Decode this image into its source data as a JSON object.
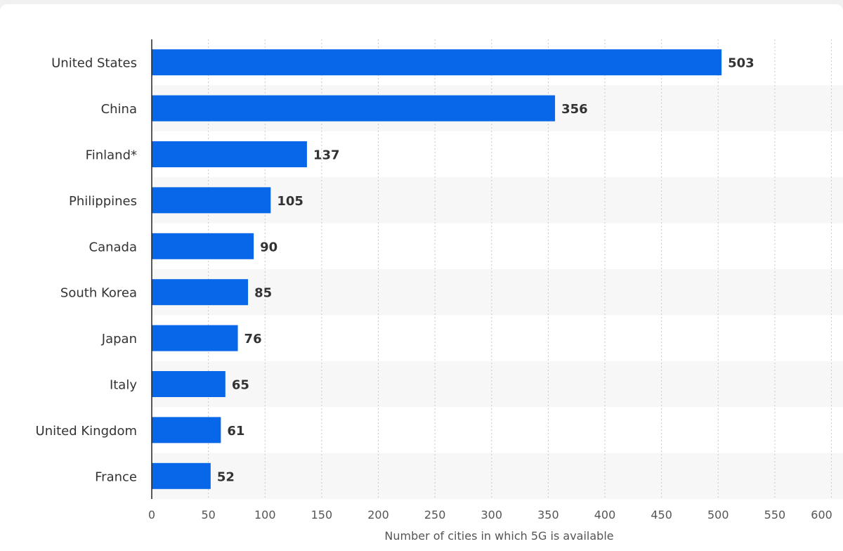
{
  "chart_data": {
    "type": "bar",
    "orientation": "horizontal",
    "categories": [
      "United States",
      "China",
      "Finland*",
      "Philippines",
      "Canada",
      "South Korea",
      "Japan",
      "Italy",
      "United Kingdom",
      "France"
    ],
    "values": [
      503,
      356,
      137,
      105,
      90,
      85,
      76,
      65,
      61,
      52
    ],
    "value_labels": [
      "503",
      "356",
      "137",
      "105",
      "90",
      "85",
      "76",
      "65",
      "61",
      "52"
    ],
    "xlabel": "Number of cities in which 5G is available",
    "ylabel": "",
    "xlim": [
      0,
      600
    ],
    "xticks": [
      0,
      50,
      100,
      150,
      200,
      250,
      300,
      350,
      400,
      450,
      500,
      550,
      600
    ],
    "xtick_labels": [
      "0",
      "50",
      "100",
      "150",
      "200",
      "250",
      "300",
      "350",
      "400",
      "450",
      "500",
      "550",
      "600"
    ],
    "grid": "vertical dotted",
    "alternating_row_bands": true,
    "colors": {
      "bar": "#0866e8",
      "band": "#f7f7f7",
      "grid": "#c8c8c8",
      "axis": "#222222"
    }
  }
}
